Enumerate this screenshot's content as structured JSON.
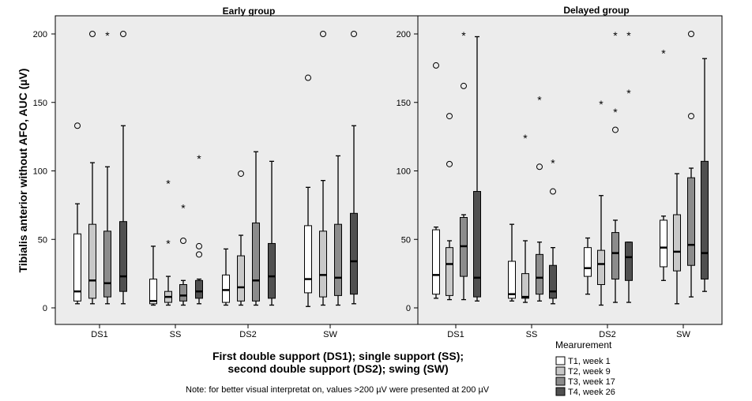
{
  "ylabel": "Tibialis anterior without AFO, AUC (µV)",
  "xlabel_line1": "First double support (DS1); single support (SS);",
  "xlabel_line2": "second double support (DS2); swing (SW)",
  "note": "Note: for better visual interpretat on, values >200 µV were presented at 200 µV",
  "legend": {
    "title": "Mearurement",
    "items": [
      {
        "label": "T1, week 1",
        "color": "#ffffff"
      },
      {
        "label": "T2, week 9",
        "color": "#c8c8c8"
      },
      {
        "label": "T3, week 17",
        "color": "#8c8c8c"
      },
      {
        "label": "T4, week 26",
        "color": "#505050"
      }
    ]
  },
  "chart_data": [
    {
      "type": "box",
      "title": "Early group",
      "categories": [
        "DS1",
        "SS",
        "DS2",
        "SW"
      ],
      "ylim": [
        -10,
        220
      ],
      "yticks": [
        0,
        50,
        100,
        150,
        200
      ],
      "plot_background": "#ececec",
      "series": [
        {
          "name": "T1, week 1",
          "color": "#ffffff",
          "boxes": [
            {
              "min": 3,
              "q1": 5,
              "median": 12,
              "q3": 54,
              "max": 76,
              "outliers": [
                133
              ],
              "extremes": []
            },
            {
              "min": 2,
              "q1": 3,
              "median": 5,
              "q3": 21,
              "max": 45,
              "outliers": [],
              "extremes": []
            },
            {
              "min": 2,
              "q1": 4,
              "median": 13,
              "q3": 24,
              "max": 43,
              "outliers": [],
              "extremes": []
            },
            {
              "min": 1,
              "q1": 11,
              "median": 21,
              "q3": 60,
              "max": 88,
              "outliers": [
                168
              ],
              "extremes": []
            }
          ]
        },
        {
          "name": "T2, week 9",
          "color": "#c8c8c8",
          "boxes": [
            {
              "min": 3,
              "q1": 7,
              "median": 20,
              "q3": 61,
              "max": 106,
              "outliers": [
                200
              ],
              "extremes": []
            },
            {
              "min": 2,
              "q1": 4,
              "median": 8,
              "q3": 12,
              "max": 23,
              "outliers": [],
              "extremes": [
                92,
                48
              ]
            },
            {
              "min": 2,
              "q1": 5,
              "median": 15,
              "q3": 38,
              "max": 53,
              "outliers": [
                98
              ],
              "extremes": []
            },
            {
              "min": 2,
              "q1": 8,
              "median": 24,
              "q3": 56,
              "max": 93,
              "outliers": [
                200
              ],
              "extremes": []
            }
          ]
        },
        {
          "name": "T3, week 17",
          "color": "#8c8c8c",
          "boxes": [
            {
              "min": 3,
              "q1": 8,
              "median": 18,
              "q3": 56,
              "max": 103,
              "outliers": [],
              "extremes": [
                200
              ]
            },
            {
              "min": 2,
              "q1": 5,
              "median": 9,
              "q3": 17,
              "max": 20,
              "outliers": [
                49
              ],
              "extremes": [
                74
              ]
            },
            {
              "min": 2,
              "q1": 5,
              "median": 20,
              "q3": 62,
              "max": 114,
              "outliers": [],
              "extremes": []
            },
            {
              "min": 2,
              "q1": 9,
              "median": 22,
              "q3": 61,
              "max": 111,
              "outliers": [],
              "extremes": []
            }
          ]
        },
        {
          "name": "T4, week 26",
          "color": "#505050",
          "boxes": [
            {
              "min": 3,
              "q1": 12,
              "median": 23,
              "q3": 63,
              "max": 133,
              "outliers": [
                200
              ],
              "extremes": []
            },
            {
              "min": 3,
              "q1": 7,
              "median": 12,
              "q3": 20,
              "max": 21,
              "outliers": [
                45,
                39
              ],
              "extremes": [
                110
              ]
            },
            {
              "min": 2,
              "q1": 7,
              "median": 23,
              "q3": 47,
              "max": 107,
              "outliers": [],
              "extremes": []
            },
            {
              "min": 3,
              "q1": 10,
              "median": 34,
              "q3": 69,
              "max": 133,
              "outliers": [
                200
              ],
              "extremes": []
            }
          ]
        }
      ]
    },
    {
      "type": "box",
      "title": "Delayed group",
      "categories": [
        "DS1",
        "SS",
        "DS2",
        "SW"
      ],
      "ylim": [
        -10,
        220
      ],
      "yticks": [
        0,
        50,
        100,
        150,
        200
      ],
      "plot_background": "#ececec",
      "series": [
        {
          "name": "T1, week 1",
          "color": "#ffffff",
          "boxes": [
            {
              "min": 7,
              "q1": 10,
              "median": 24,
              "q3": 57,
              "max": 59,
              "outliers": [
                177
              ],
              "extremes": []
            },
            {
              "min": 5,
              "q1": 7,
              "median": 10,
              "q3": 34,
              "max": 61,
              "outliers": [],
              "extremes": []
            },
            {
              "min": 10,
              "q1": 23,
              "median": 29,
              "q3": 44,
              "max": 51,
              "outliers": [],
              "extremes": []
            },
            {
              "min": 20,
              "q1": 30,
              "median": 44,
              "q3": 64,
              "max": 67,
              "outliers": [],
              "extremes": [
                187
              ]
            }
          ]
        },
        {
          "name": "T2, week 9",
          "color": "#c8c8c8",
          "boxes": [
            {
              "min": 6,
              "q1": 9,
              "median": 32,
              "q3": 44,
              "max": 49,
              "outliers": [
                140,
                105
              ],
              "extremes": []
            },
            {
              "min": 4,
              "q1": 7,
              "median": 8,
              "q3": 25,
              "max": 49,
              "outliers": [],
              "extremes": [
                125
              ]
            },
            {
              "min": 2,
              "q1": 17,
              "median": 32,
              "q3": 42,
              "max": 82,
              "outliers": [],
              "extremes": [
                150
              ]
            },
            {
              "min": 3,
              "q1": 27,
              "median": 41,
              "q3": 68,
              "max": 98,
              "outliers": [],
              "extremes": []
            }
          ]
        },
        {
          "name": "T3, week 17",
          "color": "#8c8c8c",
          "boxes": [
            {
              "min": 6,
              "q1": 23,
              "median": 45,
              "q3": 66,
              "max": 68,
              "outliers": [
                162
              ],
              "extremes": [
                200
              ]
            },
            {
              "min": 5,
              "q1": 10,
              "median": 22,
              "q3": 39,
              "max": 48,
              "outliers": [
                103
              ],
              "extremes": [
                153
              ]
            },
            {
              "min": 4,
              "q1": 21,
              "median": 40,
              "q3": 55,
              "max": 64,
              "outliers": [
                130
              ],
              "extremes": [
                144,
                200
              ]
            },
            {
              "min": 8,
              "q1": 31,
              "median": 46,
              "q3": 95,
              "max": 102,
              "outliers": [
                140,
                200
              ],
              "extremes": []
            }
          ]
        },
        {
          "name": "T4, week 26",
          "color": "#505050",
          "boxes": [
            {
              "min": 5,
              "q1": 8,
              "median": 22,
              "q3": 85,
              "max": 198,
              "outliers": [],
              "extremes": []
            },
            {
              "min": 3,
              "q1": 7,
              "median": 12,
              "q3": 31,
              "max": 44,
              "outliers": [
                85
              ],
              "extremes": [
                107
              ]
            },
            {
              "min": 4,
              "q1": 20,
              "median": 37,
              "q3": 48,
              "max": 48,
              "outliers": [],
              "extremes": [
                158,
                200
              ]
            },
            {
              "min": 12,
              "q1": 21,
              "median": 40,
              "q3": 107,
              "max": 182,
              "outliers": [],
              "extremes": []
            }
          ]
        }
      ]
    }
  ]
}
